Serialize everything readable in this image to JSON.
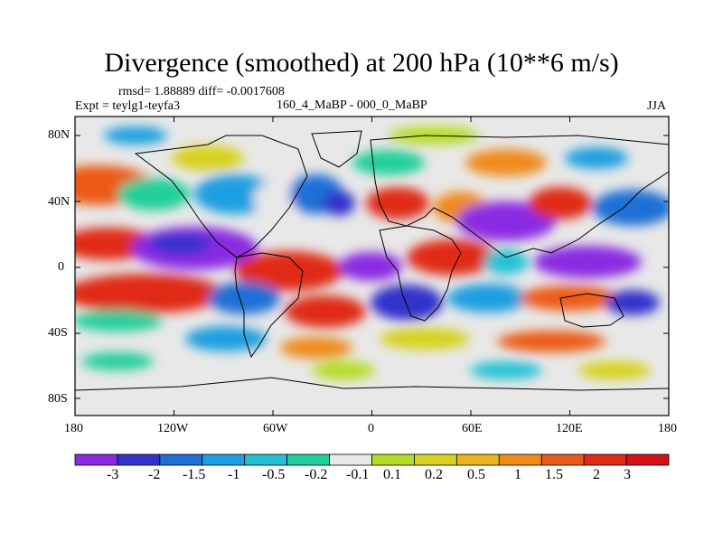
{
  "title": "Divergence (smoothed) at 200 hPa (10**6 m/s)",
  "stats": "rmsd= 1.88889 diff= -0.0017608",
  "experiment": "Expt = teylg1-teyfa3",
  "comparison": "160_4_MaBP - 000_0_MaBP",
  "season": "JJA",
  "y_ticks": [
    "80N",
    "40N",
    "0",
    "40S",
    "80S"
  ],
  "x_ticks": [
    "180",
    "120W",
    "60W",
    "0",
    "60E",
    "120E",
    "180"
  ],
  "colorbar": {
    "labels": [
      "-3",
      "-2",
      "-1.5",
      "-1",
      "-0.5",
      "-0.2",
      "-0.1",
      "0.1",
      "0.2",
      "0.5",
      "1",
      "1.5",
      "2",
      "3"
    ],
    "colors": [
      "#8a2be2",
      "#3333cc",
      "#1f6fd6",
      "#1e9fe0",
      "#22c2d4",
      "#21cf9a",
      "#e8e8e8",
      "#b3dd22",
      "#d6d21e",
      "#ecb41c",
      "#f08a1a",
      "#ec5a17",
      "#e02a14",
      "#d6101b"
    ]
  }
}
